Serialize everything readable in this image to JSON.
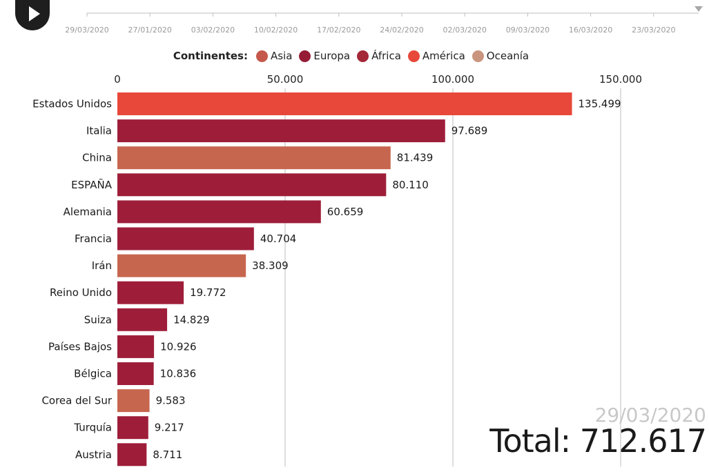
{
  "timeline": {
    "dates": [
      "29/03/2020",
      "27/01/2020",
      "03/02/2020",
      "10/02/2020",
      "17/02/2020",
      "24/02/2020",
      "02/03/2020",
      "09/03/2020",
      "16/03/2020",
      "23/03/2020"
    ]
  },
  "legend": {
    "title": "Continentes:",
    "items": [
      {
        "label": "Asia",
        "color": "#c4584a"
      },
      {
        "label": "Europa",
        "color": "#961c36"
      },
      {
        "label": "África",
        "color": "#a32838"
      },
      {
        "label": "América",
        "color": "#e8483a"
      },
      {
        "label": "Oceanía",
        "color": "#c9957e"
      }
    ]
  },
  "chart_data": {
    "type": "bar",
    "orientation": "horizontal",
    "x_ticks": [
      "0",
      "50.000",
      "100.000",
      "150.000"
    ],
    "xlim": [
      0,
      150000
    ],
    "grid": true,
    "categories": [
      "Estados Unidos",
      "Italia",
      "China",
      "ESPAÑA",
      "Alemania",
      "Francia",
      "Irán",
      "Reino Unido",
      "Suiza",
      "Países Bajos",
      "Bélgica",
      "Corea del Sur",
      "Turquía",
      "Austria"
    ],
    "values": [
      135499,
      97689,
      81439,
      80110,
      60659,
      40704,
      38309,
      19772,
      14829,
      10926,
      10836,
      9583,
      9217,
      8711
    ],
    "value_labels": [
      "135.499",
      "97.689",
      "81.439",
      "80.110",
      "60.659",
      "40.704",
      "38.309",
      "19.772",
      "14.829",
      "10.926",
      "10.836",
      "9.583",
      "9.217",
      "8.711"
    ],
    "bar_colors": [
      "#e8483a",
      "#9e1e3a",
      "#c7664f",
      "#9e1e3a",
      "#9e1e3a",
      "#9e1e3a",
      "#c7664f",
      "#9e1e3a",
      "#9e1e3a",
      "#9e1e3a",
      "#9e1e3a",
      "#c7664f",
      "#9e1e3a",
      "#9e1e3a"
    ]
  },
  "overlay": {
    "date": "29/03/2020",
    "total": "Total: 712.617"
  }
}
